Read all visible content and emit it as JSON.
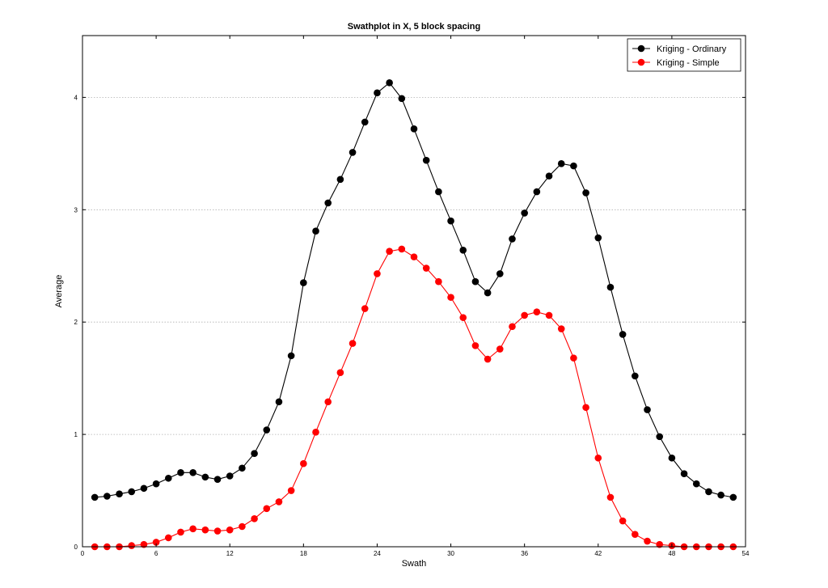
{
  "chart_data": {
    "type": "line",
    "title": "Swathplot in X, 5 block spacing",
    "xlabel": "Swath",
    "ylabel": "Average",
    "xlim": [
      0,
      54
    ],
    "ylim": [
      0,
      4.55
    ],
    "xticks": [
      0,
      6,
      12,
      18,
      24,
      30,
      36,
      42,
      48,
      54
    ],
    "yticks": [
      0,
      1,
      2,
      3,
      4
    ],
    "grid": "horizontal dotted",
    "legend_position": "top-right",
    "x": [
      1,
      2,
      3,
      4,
      5,
      6,
      7,
      8,
      9,
      10,
      11,
      12,
      13,
      14,
      15,
      16,
      17,
      18,
      19,
      20,
      21,
      22,
      23,
      24,
      25,
      26,
      27,
      28,
      29,
      30,
      31,
      32,
      33,
      34,
      35,
      36,
      37,
      38,
      39,
      40,
      41,
      42,
      43,
      44,
      45,
      46,
      47,
      48,
      49,
      50,
      51,
      52,
      53
    ],
    "series": [
      {
        "name": "Kriging - Ordinary",
        "color": "#000000",
        "values": [
          0.44,
          0.45,
          0.47,
          0.49,
          0.52,
          0.56,
          0.61,
          0.66,
          0.66,
          0.62,
          0.6,
          0.63,
          0.7,
          0.83,
          1.04,
          1.29,
          1.7,
          2.35,
          2.81,
          3.06,
          3.27,
          3.51,
          3.78,
          4.04,
          4.13,
          3.99,
          3.72,
          3.44,
          3.16,
          2.9,
          2.64,
          2.36,
          2.26,
          2.43,
          2.74,
          2.97,
          3.16,
          3.3,
          3.41,
          3.39,
          3.15,
          2.75,
          2.31,
          1.89,
          1.52,
          1.22,
          0.98,
          0.79,
          0.65,
          0.56,
          0.49,
          0.46,
          0.44
        ]
      },
      {
        "name": "Kriging - Simple",
        "color": "#ff0000",
        "values": [
          0.0,
          0.0,
          0.0,
          0.01,
          0.02,
          0.04,
          0.08,
          0.13,
          0.16,
          0.15,
          0.14,
          0.15,
          0.18,
          0.25,
          0.34,
          0.4,
          0.5,
          0.74,
          1.02,
          1.29,
          1.55,
          1.81,
          2.12,
          2.43,
          2.63,
          2.65,
          2.58,
          2.48,
          2.36,
          2.22,
          2.04,
          1.79,
          1.67,
          1.76,
          1.96,
          2.06,
          2.09,
          2.06,
          1.94,
          1.68,
          1.24,
          0.79,
          0.44,
          0.23,
          0.11,
          0.05,
          0.02,
          0.01,
          0.0,
          0.0,
          0.0,
          0.0,
          0.0
        ]
      }
    ]
  }
}
